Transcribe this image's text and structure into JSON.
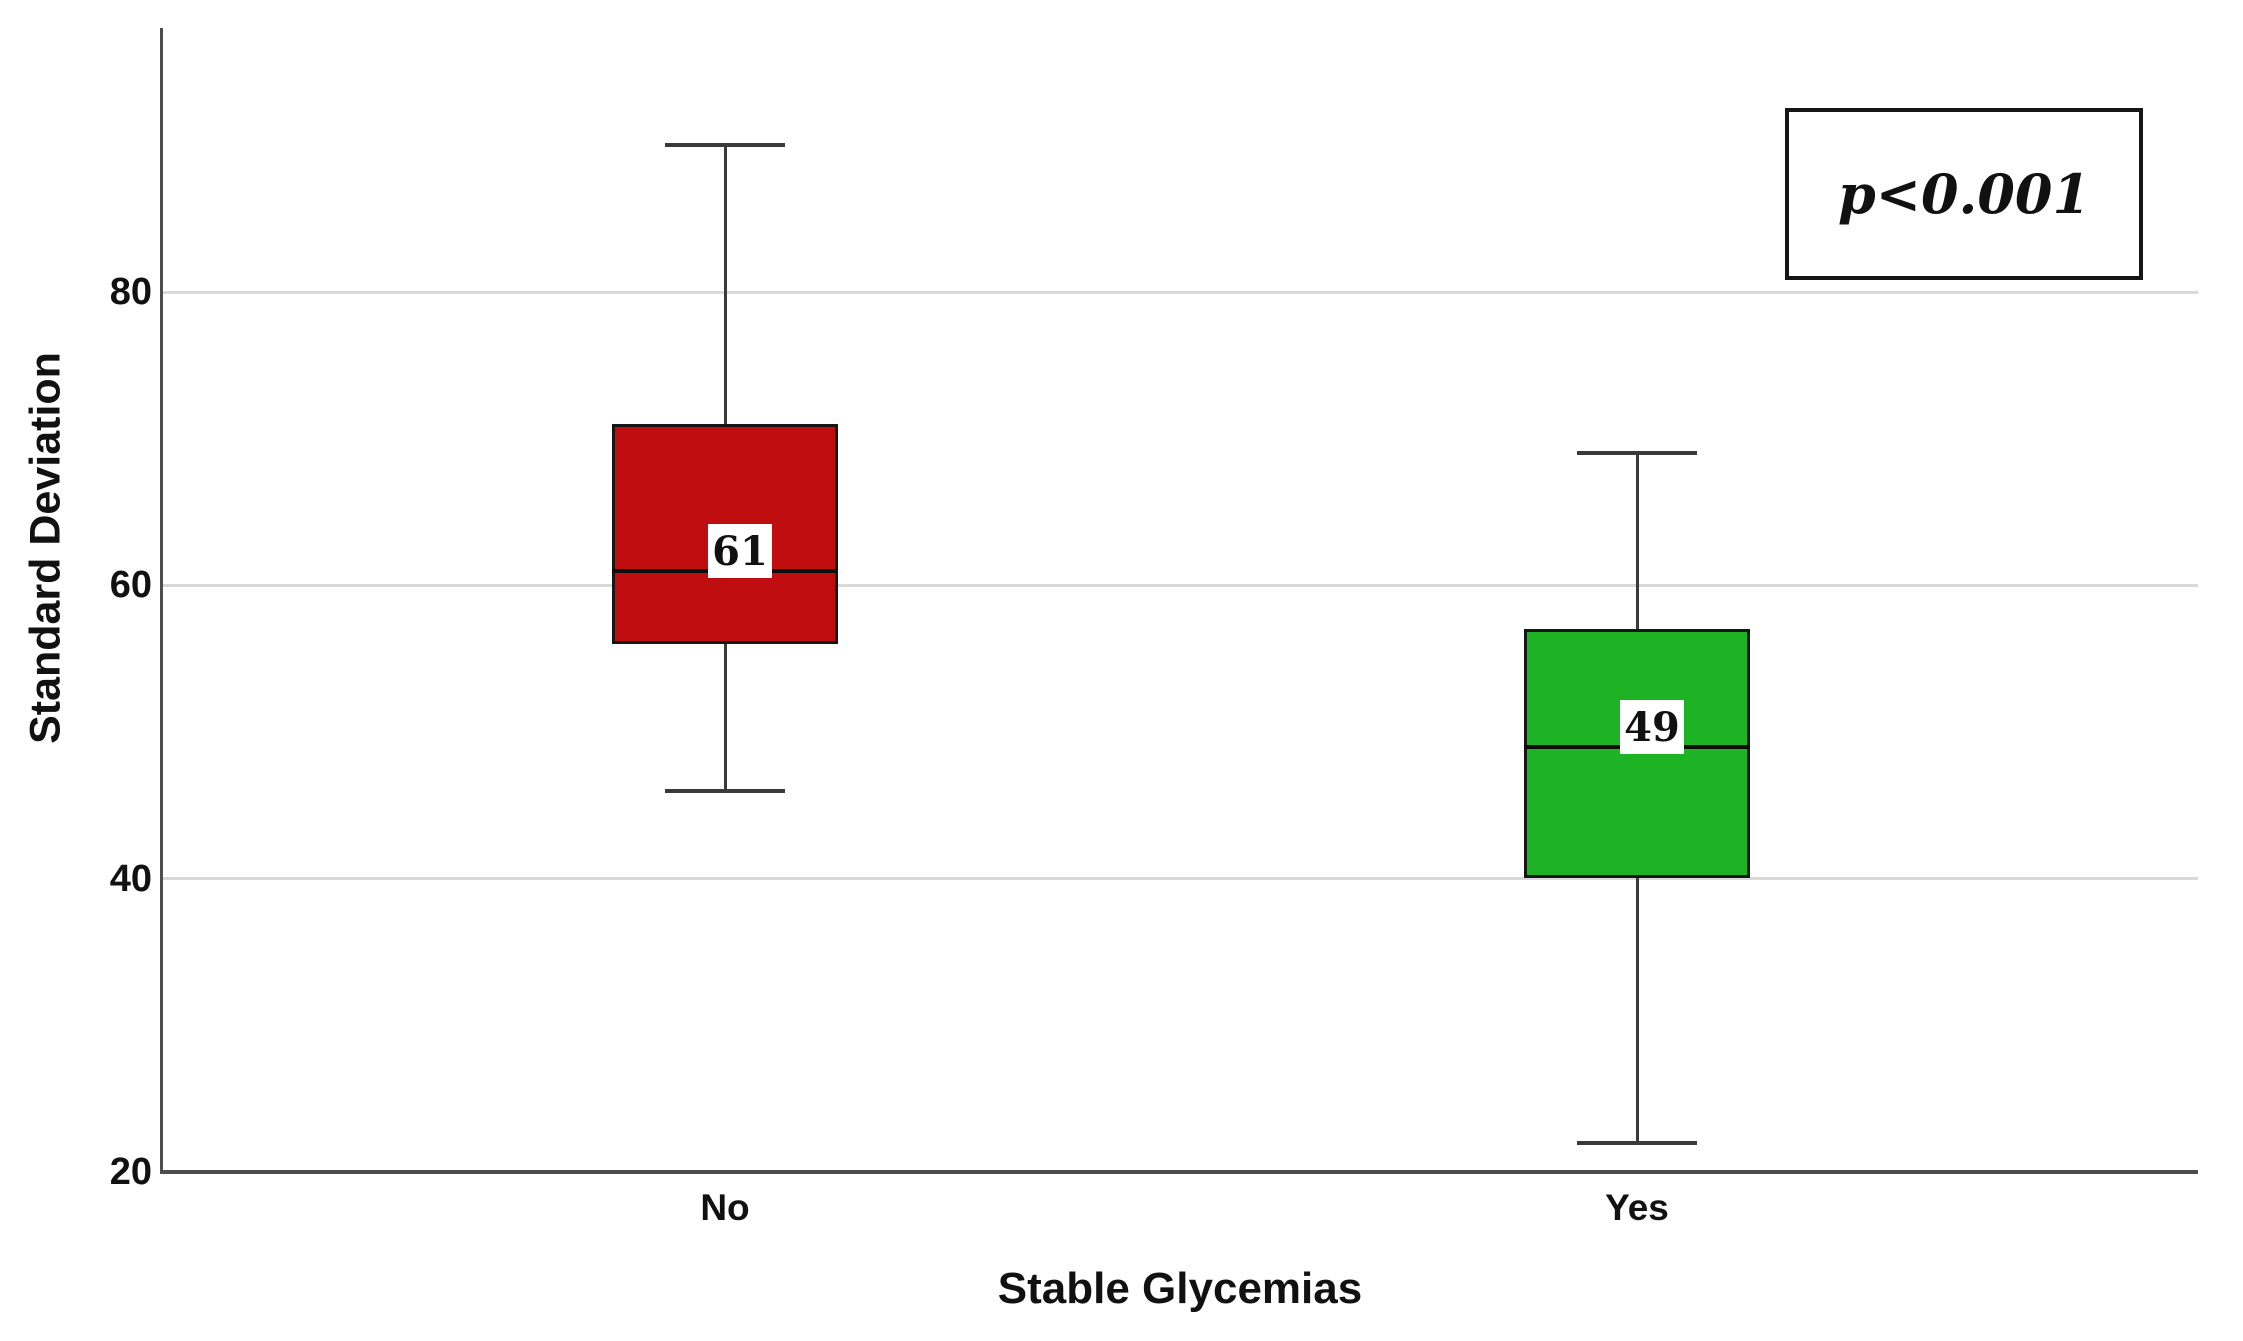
{
  "figure": {
    "background": "#ffffff"
  },
  "chart_data": {
    "type": "boxplot",
    "title": "",
    "xlabel": "Stable Glycemias",
    "ylabel": "Standard Deviation",
    "ylim": [
      20,
      98
    ],
    "yticks": [
      80,
      60,
      40,
      20
    ],
    "grid": "horizontal-light",
    "grid_color": "#d9d9d9",
    "axis_color": "#4d4d4d",
    "legend": "none",
    "annotation": "p<0.001",
    "categories": [
      "No",
      "Yes"
    ],
    "series": [
      {
        "category": "No",
        "color": "#c00d10",
        "whisker_low": 46,
        "q1": 56,
        "median": 61,
        "q3": 71,
        "whisker_high": 90,
        "median_label": "61"
      },
      {
        "category": "Yes",
        "color": "#1db324",
        "whisker_low": 22,
        "q1": 40,
        "median": 49,
        "q3": 57,
        "whisker_high": 69,
        "median_label": "49"
      }
    ]
  }
}
